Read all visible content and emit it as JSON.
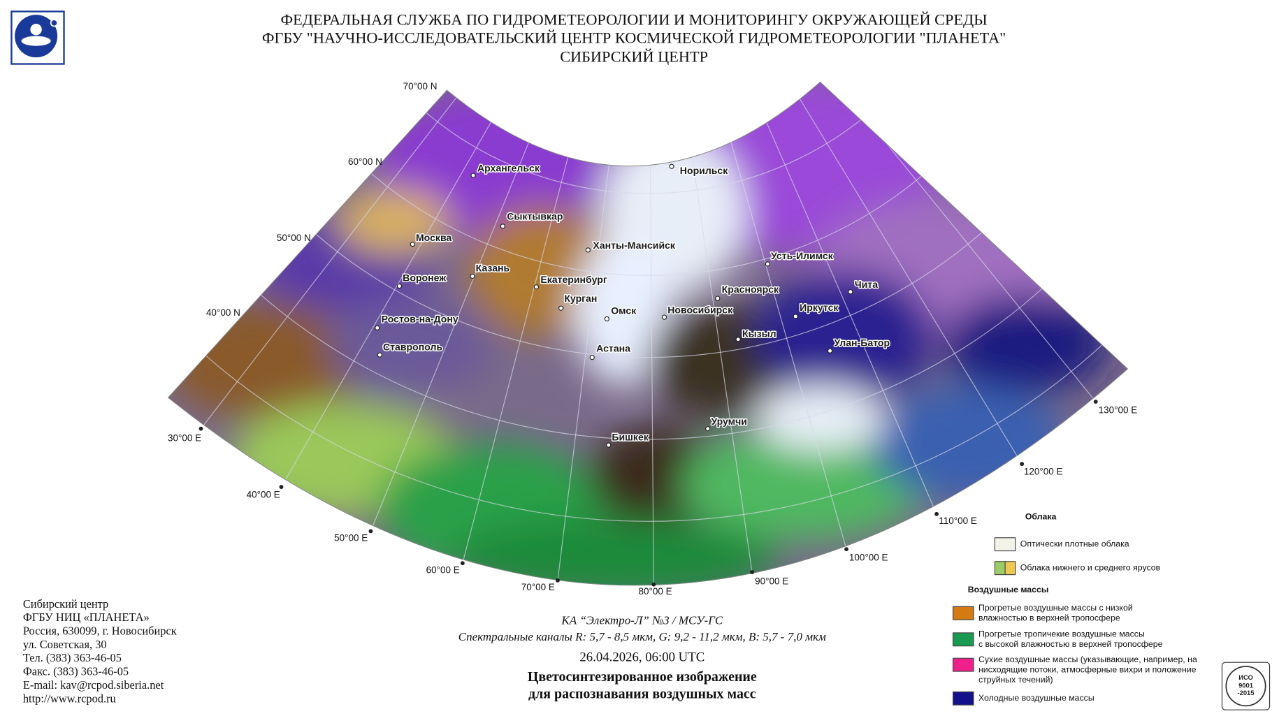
{
  "header": {
    "lines": [
      "ФЕДЕРАЛЬНАЯ СЛУЖБА ПО ГИДРОМЕТЕОРОЛОГИИ И МОНИТОРИНГУ ОКРУЖАЮЩЕЙ СРЕДЫ",
      "ФГБУ \"НАУЧНО-ИССЛЕДОВАТЕЛЬСКИЙ ЦЕНТР КОСМИЧЕСКОЙ ГИДРОМЕТЕОРОЛОГИИ \"ПЛАНЕТА\"",
      "СИБИРСКИЙ ЦЕНТР"
    ]
  },
  "map": {
    "latitude_labels": [
      "70°00 N",
      "60°00 N",
      "50°00 N",
      "40°00 N"
    ],
    "longitude_labels": [
      "30°00 E",
      "40°00 E",
      "50°00 E",
      "60°00 E",
      "70°00 E",
      "80°00 E",
      "90°00 E",
      "100°00 E",
      "110°00 E",
      "120°00 E",
      "130°00 E"
    ],
    "cities": [
      "Архангельск",
      "Норильск",
      "Сыктывкар",
      "Москва",
      "Ханты-Мансийск",
      "Усть-Илимск",
      "Казань",
      "Воронеж",
      "Екатеринбург",
      "Красноярск",
      "Чита",
      "Курган",
      "Омск",
      "Новосибирск",
      "Иркутск",
      "Ростов-на-Дону",
      "Кызыл",
      "Улан-Батор",
      "Ставрополь",
      "Астана",
      "Урумчи",
      "Бишкек"
    ]
  },
  "legend": {
    "clouds_title": "Облака",
    "clouds": [
      {
        "lines": [
          "Оптически плотные облака"
        ]
      },
      {
        "lines": [
          "Облака нижнего и среднего ярусов"
        ]
      }
    ],
    "air_masses_title": "Воздушные массы",
    "air_masses": [
      {
        "lines": [
          "Прогретые воздушные массы с низкой",
          "влажностью в верхней тропосфере"
        ]
      },
      {
        "lines": [
          "Прогретые тропичекие воздушные массы",
          "с высокой влажностью в верхней тропосфере"
        ]
      },
      {
        "lines": [
          "Сухие воздушные массы (указывающие, например, на",
          "нисходящие потоки, атмосферные вихри и положение",
          "струйных течений)"
        ]
      },
      {
        "lines": [
          "Холодные воздушные массы"
        ]
      }
    ]
  },
  "contact": {
    "lines": [
      "Сибирский центр",
      "ФГБУ НИЦ «ПЛАНЕТА»",
      "Россия, 630099, г. Новосибирск",
      "ул. Советская, 30",
      "Тел. (383) 363-46-05",
      "Факс. (383) 363-46-05",
      "E-mail: kav@rcpod.siberia.net",
      "http://www.rcpod.ru"
    ]
  },
  "caption": {
    "satellite": "КА “Электро-Л” №3 / МСУ-ГС",
    "channels": "Спектральные каналы R: 5,7 - 8,5 мкм, G: 9,2 - 11,2 мкм, B: 5,7 - 7,0 мкм",
    "datetime": "26.04.2026, 06:00 UTC",
    "title_lines": [
      "Цветосинтезированное изображение",
      "для распознавания воздушных масс"
    ]
  },
  "certificate": {
    "lines": [
      "ИСО",
      "9001",
      "-2015"
    ]
  }
}
